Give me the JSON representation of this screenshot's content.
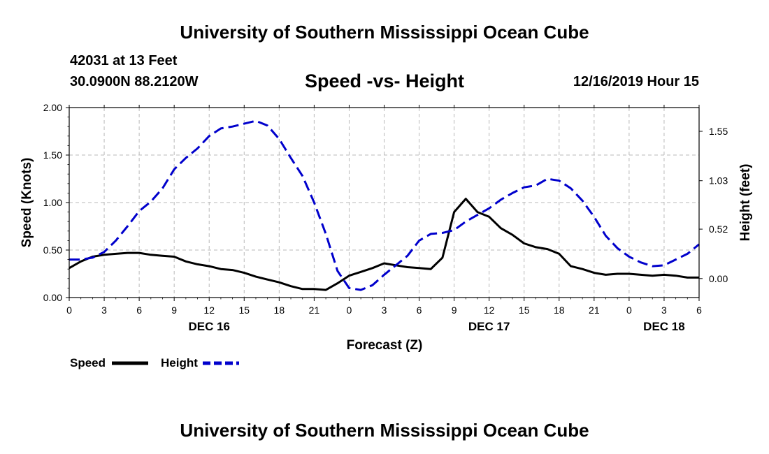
{
  "header": {
    "title": "University of Southern Mississippi Ocean Cube",
    "station": "42031 at 13 Feet",
    "coords": "30.0900N 88.2120W",
    "subtitle": "Speed -vs- Height",
    "datetime": "12/16/2019 Hour 15"
  },
  "footer": {
    "title": "University of Southern Mississippi Ocean Cube"
  },
  "chart_data": {
    "type": "line",
    "title": "Speed -vs- Height",
    "xlabel": "Forecast (Z)",
    "ylabel_left": "Speed (Knots)",
    "ylabel_right": "Height (feet)",
    "x_unit": "hours from DEC 16 00Z",
    "xlim": [
      0,
      54
    ],
    "ylim_left": [
      0,
      2.0
    ],
    "ylim_right": [
      -0.2,
      1.8
    ],
    "grid": true,
    "x_tick_values": [
      0,
      3,
      6,
      9,
      12,
      15,
      18,
      21,
      24,
      27,
      30,
      33,
      36,
      39,
      42,
      45,
      48,
      51,
      54
    ],
    "x_tick_labels": [
      "0",
      "3",
      "6",
      "9",
      "12",
      "15",
      "18",
      "21",
      "0",
      "3",
      "6",
      "9",
      "12",
      "15",
      "18",
      "21",
      "0",
      "3",
      "6"
    ],
    "date_labels": [
      {
        "x": 12,
        "text": "DEC 16"
      },
      {
        "x": 36,
        "text": "DEC 17"
      },
      {
        "x": 51,
        "text": "DEC 18"
      }
    ],
    "y_left_ticks": [
      0.0,
      0.5,
      1.0,
      1.5,
      2.0
    ],
    "y_left_tick_labels": [
      "0.00",
      "0.50",
      "1.00",
      "1.50",
      "2.00"
    ],
    "y_right_ticks": [
      0.0,
      0.52,
      1.03,
      1.55
    ],
    "y_right_tick_labels": [
      "0.00",
      "0.52",
      "1.03",
      "1.55"
    ],
    "series": [
      {
        "name": "Speed",
        "axis": "left",
        "color": "#000000",
        "style": "solid",
        "x": [
          0,
          1,
          2,
          3,
          4,
          5,
          6,
          7,
          8,
          9,
          10,
          11,
          12,
          13,
          14,
          15,
          16,
          17,
          18,
          19,
          20,
          21,
          22,
          23,
          24,
          25,
          26,
          27,
          28,
          29,
          30,
          31,
          32,
          33,
          34,
          35,
          36,
          37,
          38,
          39,
          40,
          41,
          42,
          43,
          44,
          45,
          46,
          47,
          48,
          49,
          50,
          51,
          52,
          53,
          54
        ],
        "values": [
          0.31,
          0.38,
          0.43,
          0.45,
          0.46,
          0.47,
          0.47,
          0.45,
          0.44,
          0.43,
          0.38,
          0.35,
          0.33,
          0.3,
          0.29,
          0.26,
          0.22,
          0.19,
          0.16,
          0.12,
          0.09,
          0.09,
          0.08,
          0.15,
          0.23,
          0.27,
          0.31,
          0.36,
          0.34,
          0.32,
          0.31,
          0.3,
          0.42,
          0.9,
          1.04,
          0.9,
          0.85,
          0.73,
          0.66,
          0.57,
          0.53,
          0.51,
          0.46,
          0.33,
          0.3,
          0.26,
          0.24,
          0.25,
          0.25,
          0.24,
          0.23,
          0.24,
          0.23,
          0.21,
          0.21
        ]
      },
      {
        "name": "Height",
        "axis": "right",
        "color": "#0000cc",
        "style": "dashed",
        "x": [
          0,
          1,
          2,
          3,
          4,
          5,
          6,
          7,
          8,
          9,
          10,
          11,
          12,
          13,
          14,
          15,
          16,
          17,
          18,
          19,
          20,
          21,
          22,
          23,
          24,
          25,
          26,
          27,
          28,
          29,
          30,
          31,
          32,
          33,
          34,
          35,
          36,
          37,
          38,
          39,
          40,
          41,
          42,
          43,
          44,
          45,
          46,
          47,
          48,
          49,
          50,
          51,
          52,
          53,
          54
        ],
        "values": [
          0.2,
          0.2,
          0.22,
          0.28,
          0.4,
          0.55,
          0.71,
          0.81,
          0.95,
          1.15,
          1.27,
          1.37,
          1.5,
          1.58,
          1.6,
          1.63,
          1.66,
          1.61,
          1.47,
          1.27,
          1.08,
          0.8,
          0.47,
          0.08,
          -0.1,
          -0.12,
          -0.07,
          0.04,
          0.14,
          0.24,
          0.4,
          0.47,
          0.48,
          0.51,
          0.6,
          0.67,
          0.74,
          0.83,
          0.9,
          0.96,
          0.98,
          1.05,
          1.03,
          0.95,
          0.82,
          0.65,
          0.45,
          0.32,
          0.23,
          0.17,
          0.13,
          0.14,
          0.2,
          0.26,
          0.36
        ]
      }
    ],
    "legend": [
      {
        "label": "Speed",
        "color": "#000000",
        "style": "solid"
      },
      {
        "label": "Height",
        "color": "#0000cc",
        "style": "dashed"
      }
    ],
    "legend_position": "bottom-left"
  }
}
